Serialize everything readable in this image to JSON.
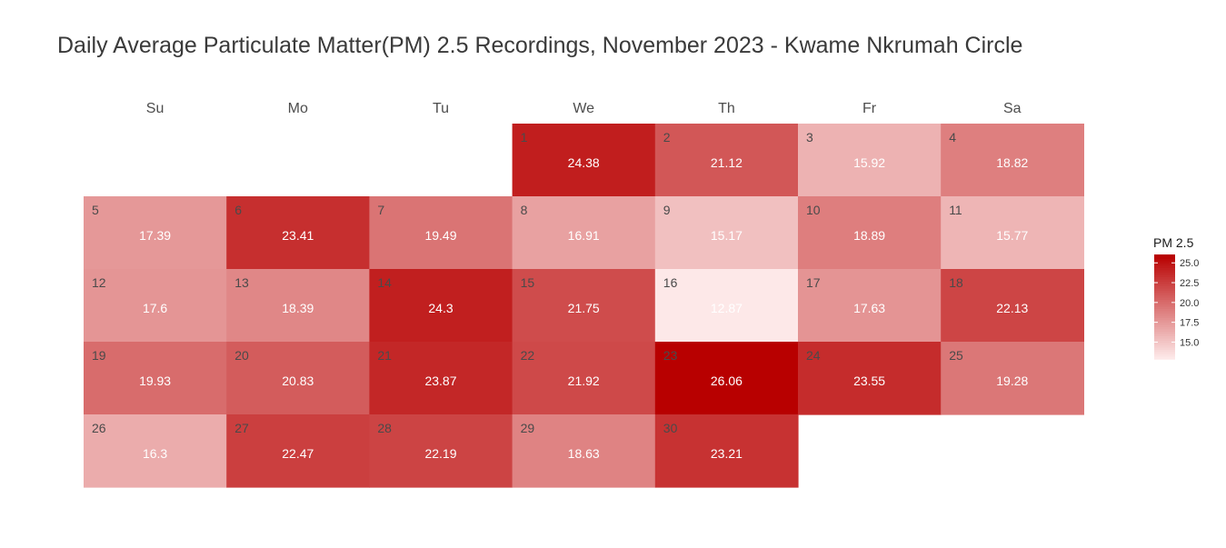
{
  "chart_data": {
    "type": "heatmap",
    "title": "Daily Average Particulate Matter(PM) 2.5 Recordings, November 2023 - Kwame Nkrumah Circle",
    "weekdays": [
      "Su",
      "Mo",
      "Tu",
      "We",
      "Th",
      "Fr",
      "Sa"
    ],
    "first_weekday_index": 3,
    "days": [
      1,
      2,
      3,
      4,
      5,
      6,
      7,
      8,
      9,
      10,
      11,
      12,
      13,
      14,
      15,
      16,
      17,
      18,
      19,
      20,
      21,
      22,
      23,
      24,
      25,
      26,
      27,
      28,
      29,
      30
    ],
    "values": [
      "24.38",
      "21.12",
      "15.92",
      "18.82",
      "17.39",
      "23.41",
      "19.49",
      "16.91",
      "15.17",
      "18.89",
      "15.77",
      "17.6",
      "18.39",
      "24.3",
      "21.75",
      "12.87",
      "17.63",
      "22.13",
      "19.93",
      "20.83",
      "23.87",
      "21.92",
      "26.06",
      "23.55",
      "19.28",
      "16.3",
      "22.47",
      "22.19",
      "18.63",
      "23.21"
    ],
    "legend": {
      "title": "PM 2.5",
      "ticks": [
        "15.0",
        "17.5",
        "20.0",
        "22.5",
        "25.0"
      ],
      "tick_values": [
        15,
        17.5,
        20,
        22.5,
        25
      ]
    },
    "color_scale": {
      "min": 12.87,
      "max": 26.06,
      "low_color": "#fde8e8",
      "high_color": "#b80000"
    }
  }
}
